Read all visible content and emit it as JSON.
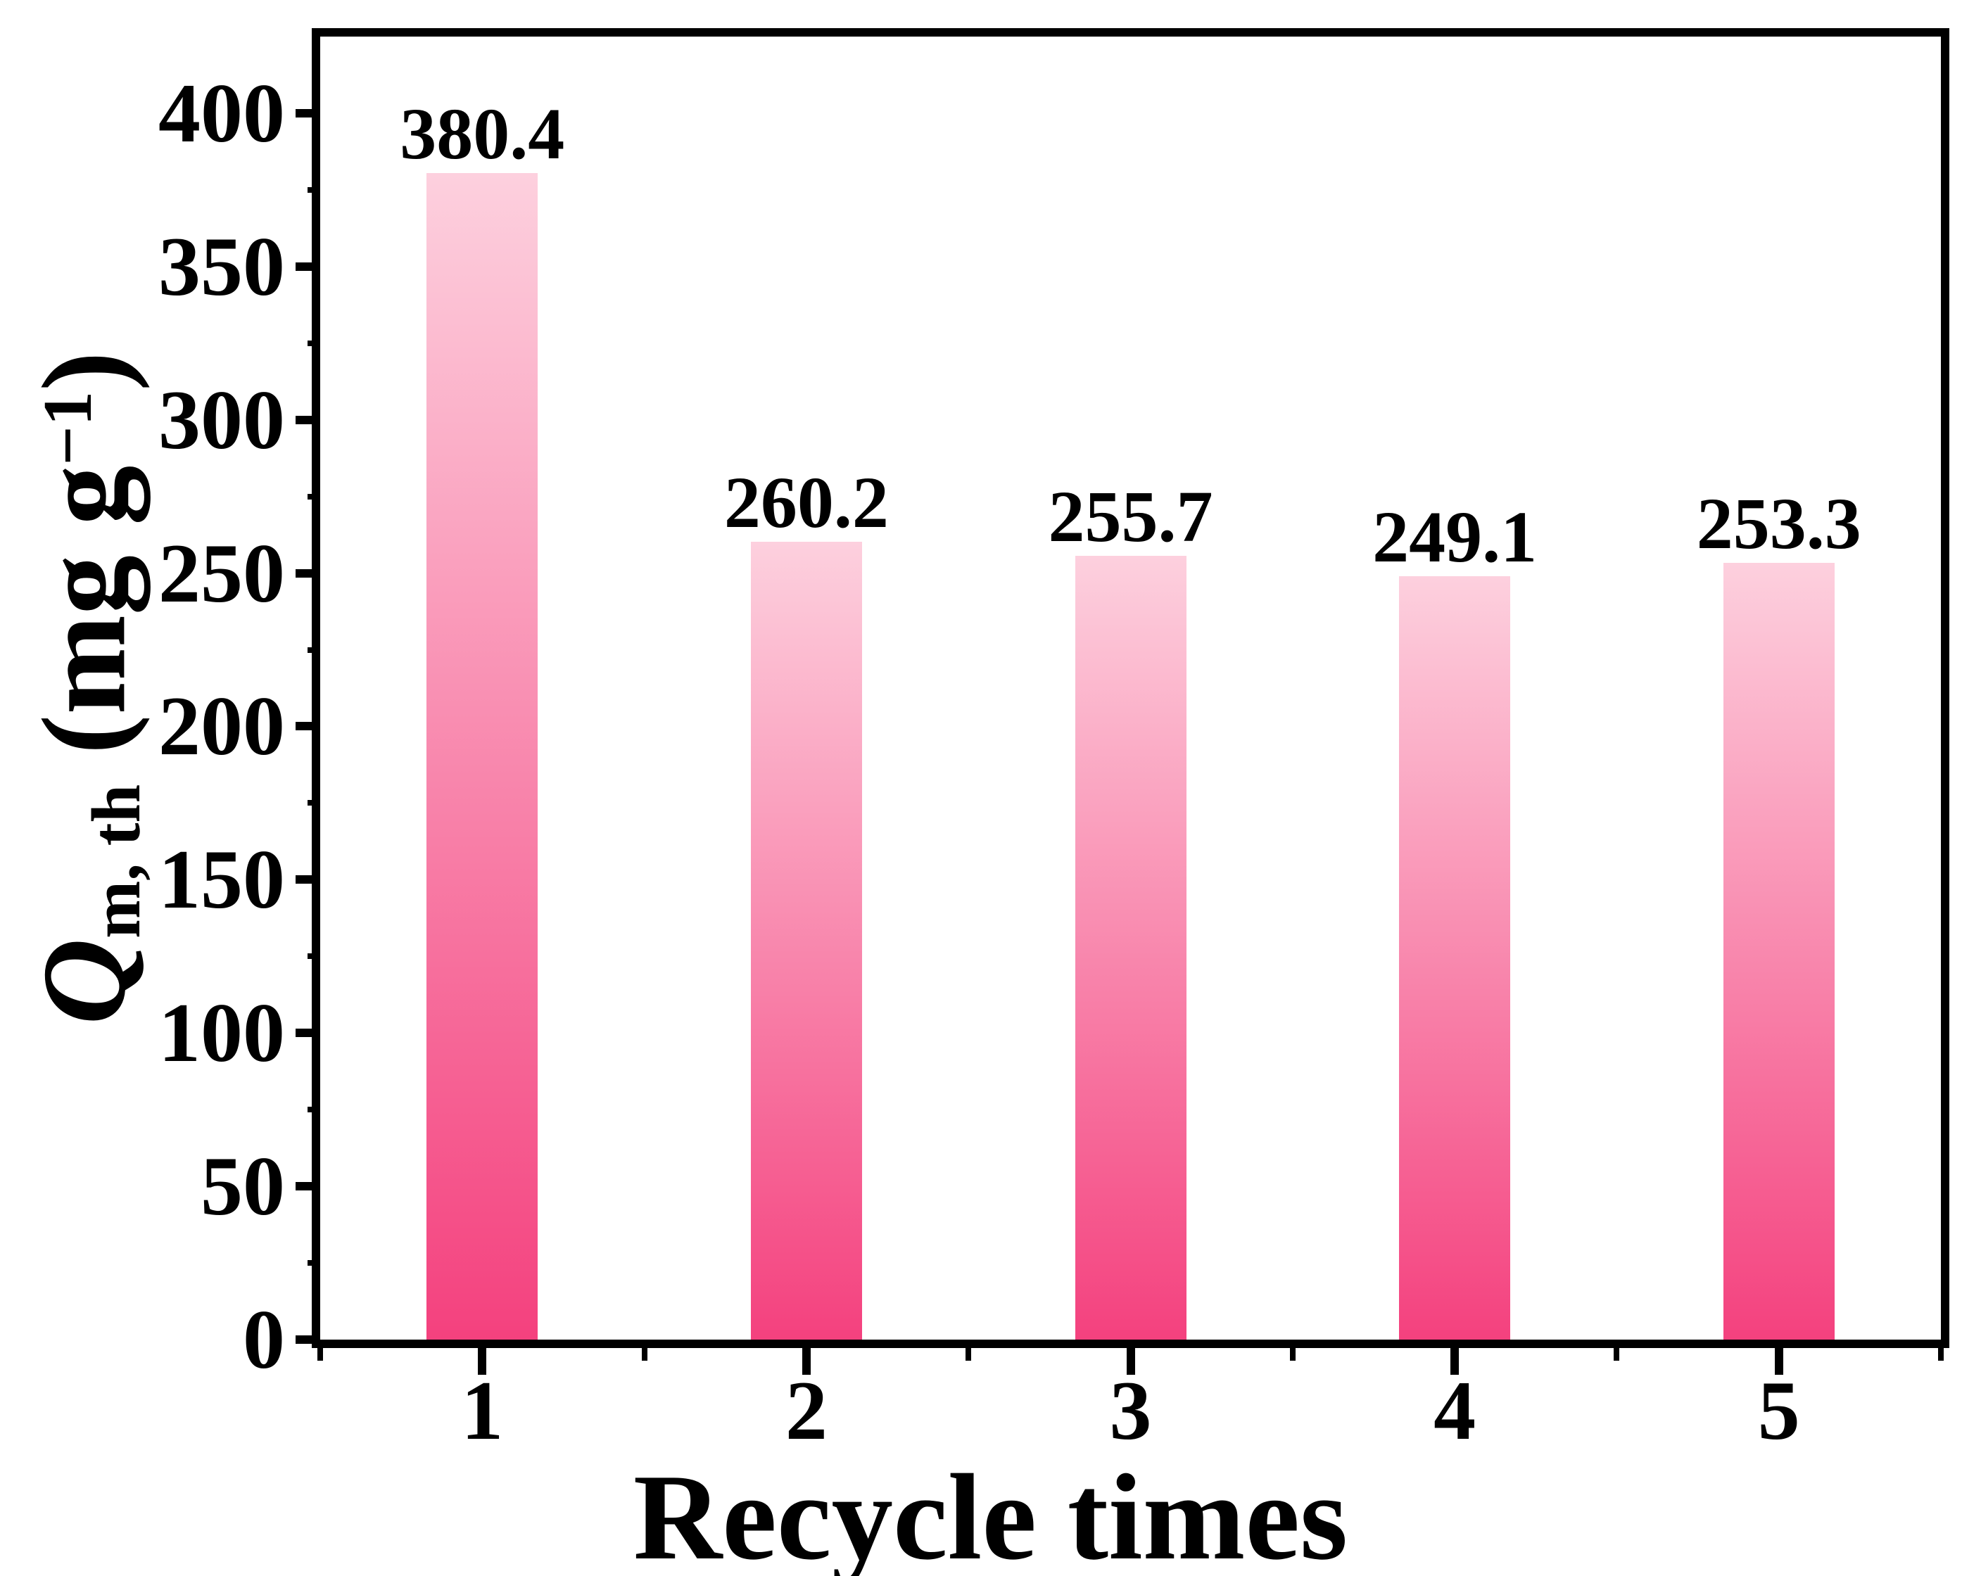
{
  "chart_data": {
    "type": "bar",
    "categories": [
      "1",
      "2",
      "3",
      "4",
      "5"
    ],
    "values": [
      380.4,
      260.2,
      255.7,
      249.1,
      253.3
    ],
    "bar_labels": [
      "380.4",
      "260.2",
      "255.7",
      "249.1",
      "253.3"
    ],
    "xlabel": "Recycle times",
    "ylabel": {
      "symbol": "Q",
      "subscript": "m, th",
      "unit_open": " (mg g",
      "unit_sup": "−1",
      "unit_close": ")"
    },
    "ylim": [
      0,
      425
    ],
    "yticks": [
      "0",
      "50",
      "100",
      "150",
      "200",
      "250",
      "300",
      "350",
      "400"
    ],
    "ytick_values": [
      0,
      50,
      100,
      150,
      200,
      250,
      300,
      350,
      400
    ],
    "grid": false,
    "legend": "none",
    "colors": {
      "bar_gradient_top": "#FDD0DE",
      "bar_gradient_bottom": "#F4417E",
      "axis": "#000000",
      "text": "#000000",
      "background": "#FFFFFF"
    }
  }
}
